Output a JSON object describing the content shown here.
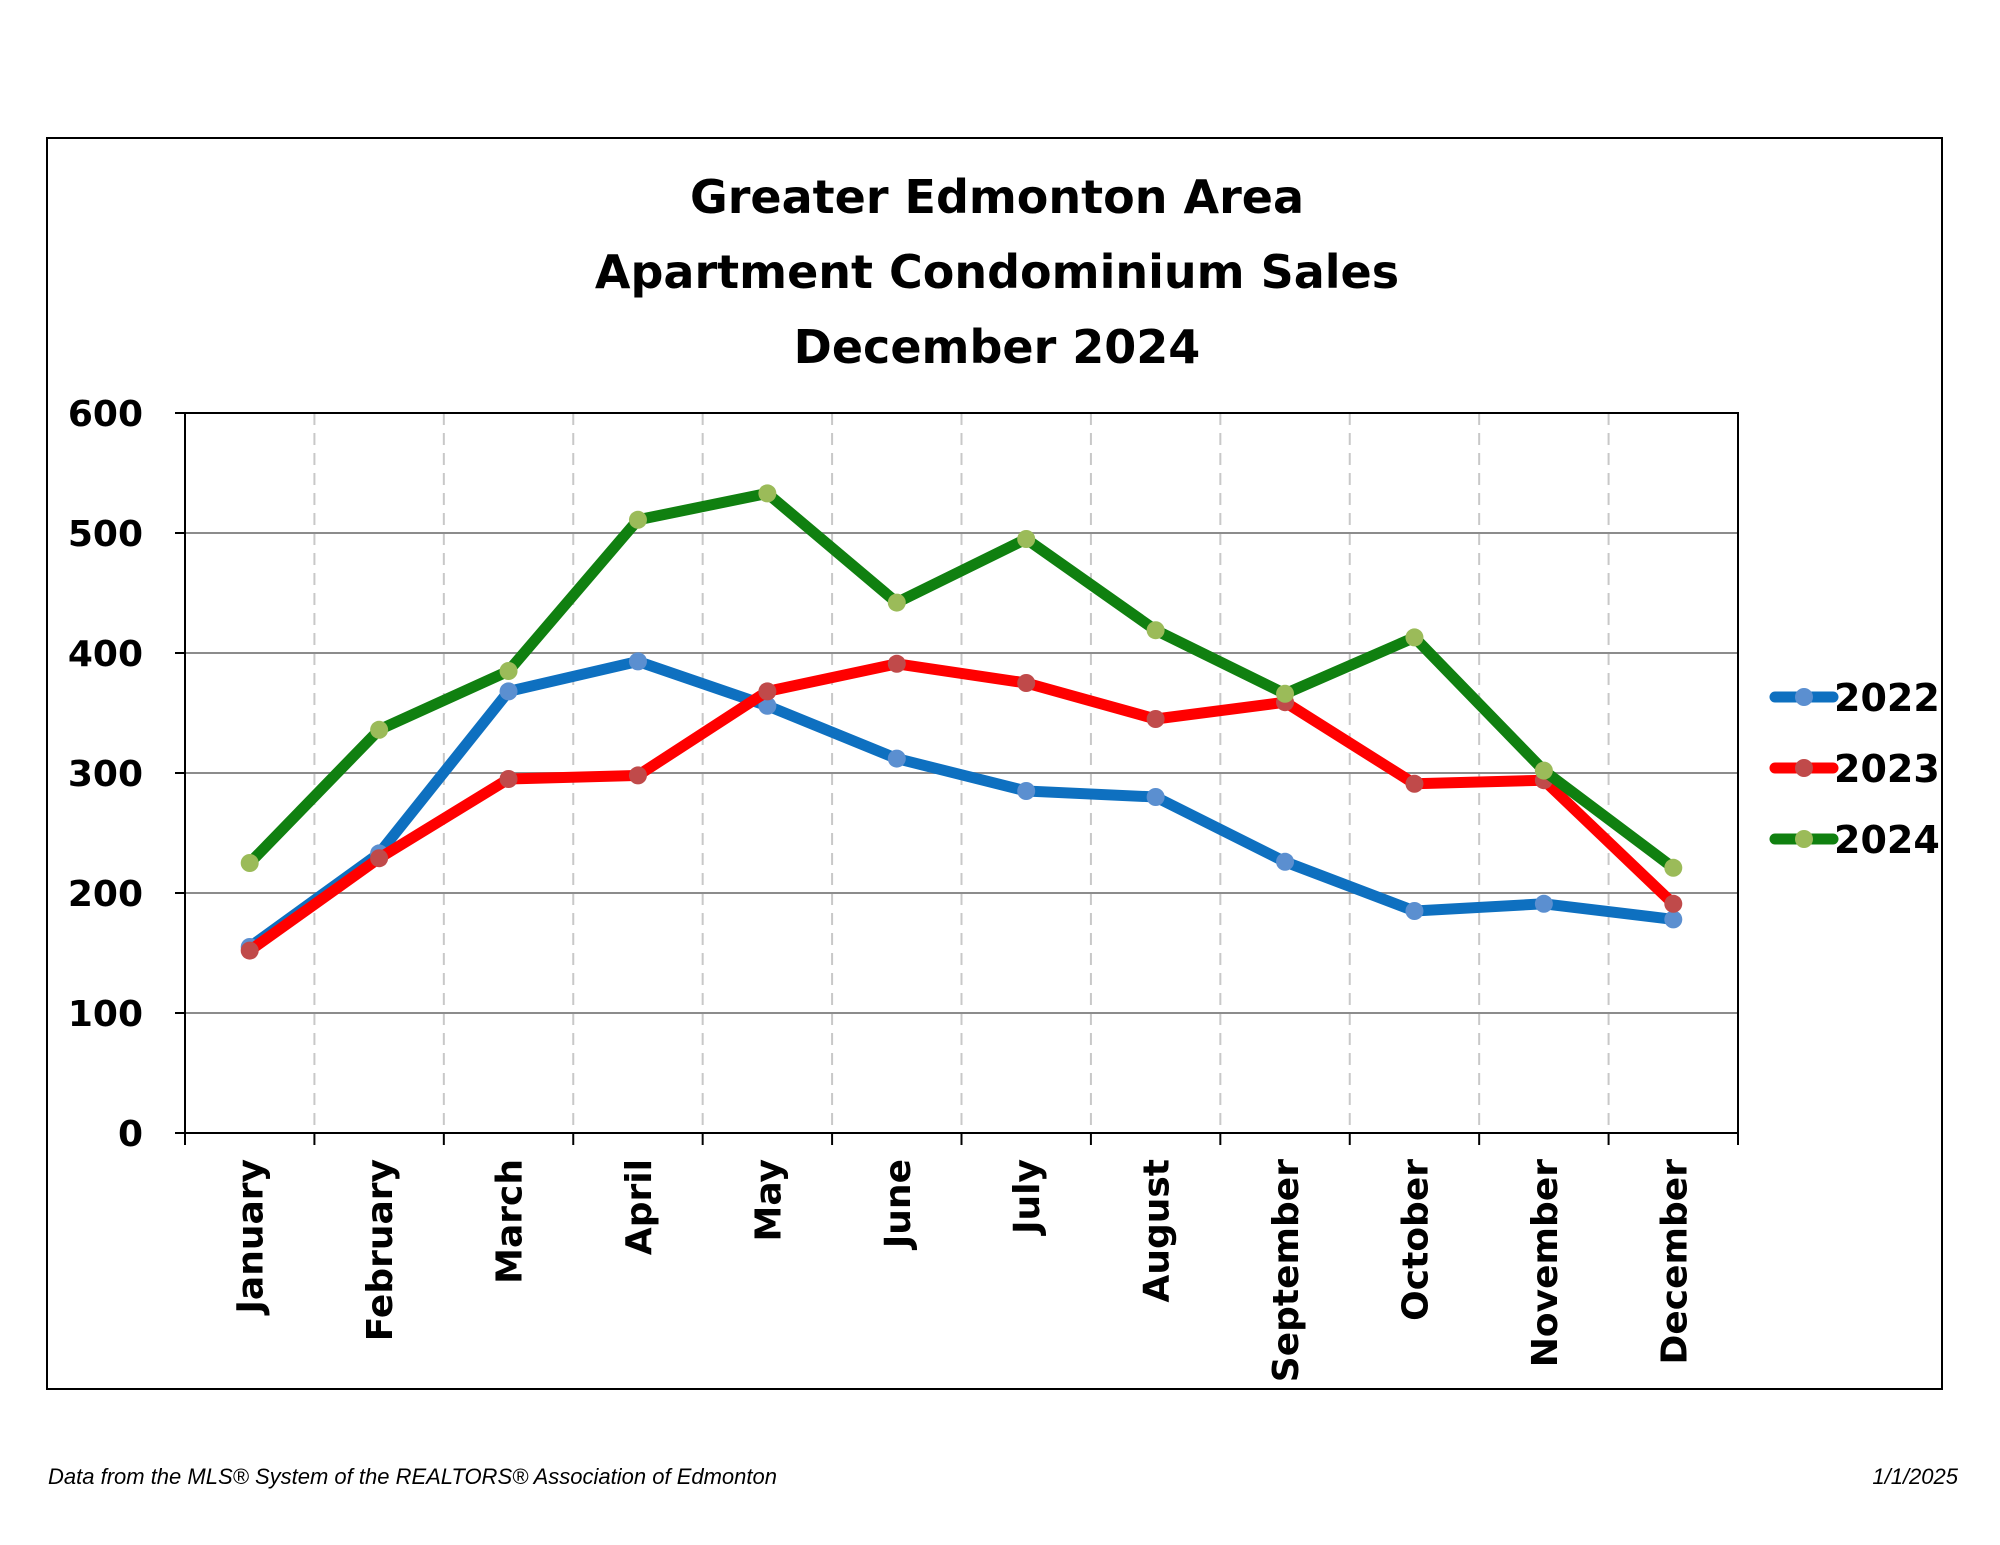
{
  "chart_data": {
    "type": "line",
    "title": [
      "Greater Edmonton Area",
      "Apartment Condominium Sales",
      "December 2024"
    ],
    "categories": [
      "January",
      "February",
      "March",
      "April",
      "May",
      "June",
      "July",
      "August",
      "September",
      "October",
      "November",
      "December"
    ],
    "y_ticks": [
      "0",
      "100",
      "200",
      "300",
      "400",
      "500",
      "600"
    ],
    "ylim": [
      0,
      600
    ],
    "grid": {
      "horizontal": true,
      "vertical": "dashed"
    },
    "legend_position": "right",
    "series": [
      {
        "name": "2022",
        "line_color": "#0e70c0",
        "marker_color": "#5b8fd0",
        "values": [
          155,
          233,
          368,
          393,
          356,
          312,
          285,
          280,
          226,
          185,
          191,
          178
        ]
      },
      {
        "name": "2023",
        "line_color": "#ff0000",
        "marker_color": "#c04a4a",
        "values": [
          152,
          229,
          295,
          298,
          368,
          391,
          375,
          345,
          359,
          291,
          294,
          191
        ]
      },
      {
        "name": "2024",
        "line_color": "#108010",
        "marker_color": "#9bbb59",
        "values": [
          225,
          336,
          385,
          511,
          533,
          442,
          495,
          419,
          366,
          413,
          302,
          221
        ]
      }
    ]
  },
  "footer": {
    "source": "Data from the MLS® System of the REALTORS® Association of Edmonton",
    "date": "1/1/2025"
  }
}
